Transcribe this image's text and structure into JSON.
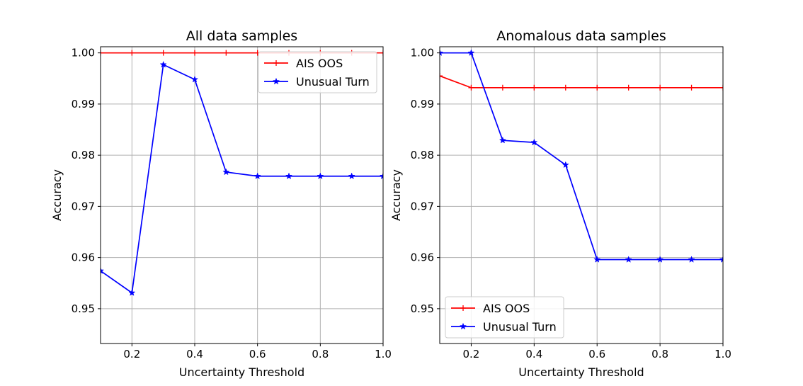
{
  "chart_data": [
    {
      "type": "line",
      "title": "All data samples",
      "xlabel": "Uncertainty Threshold",
      "ylabel": "Accuracy",
      "xlim": [
        0.1,
        1.0
      ],
      "ylim": [
        0.9432,
        1.0012
      ],
      "xticks": [
        0.2,
        0.4,
        0.6,
        0.8,
        1.0
      ],
      "xtick_labels": [
        "0.2",
        "0.4",
        "0.6",
        "0.8",
        "1.0"
      ],
      "yticks": [
        0.95,
        0.96,
        0.97,
        0.98,
        0.99,
        1.0
      ],
      "ytick_labels": [
        "0.95",
        "0.96",
        "0.97",
        "0.98",
        "0.99",
        "1.00"
      ],
      "grid": true,
      "legend_position": "upper right",
      "x": [
        0.1,
        0.2,
        0.3,
        0.4,
        0.5,
        0.6,
        0.7,
        0.8,
        0.9,
        1.0
      ],
      "series": [
        {
          "name": "AIS OOS",
          "color": "#ff0000",
          "marker": "plus",
          "values": [
            1.0,
            1.0,
            1.0,
            1.0,
            1.0,
            1.0,
            1.0,
            1.0,
            1.0,
            1.0
          ]
        },
        {
          "name": "Unusual Turn",
          "color": "#0000ff",
          "marker": "star",
          "values": [
            0.9574,
            0.9531,
            0.9977,
            0.9948,
            0.9767,
            0.9759,
            0.9759,
            0.9759,
            0.9759,
            0.9759
          ]
        }
      ]
    },
    {
      "type": "line",
      "title": "Anomalous data samples",
      "xlabel": "Uncertainty Threshold",
      "ylabel": "Accuracy",
      "xlim": [
        0.1,
        1.0
      ],
      "ylim": [
        0.9432,
        1.0012
      ],
      "xticks": [
        0.2,
        0.4,
        0.6,
        0.8,
        1.0
      ],
      "xtick_labels": [
        "0.2",
        "0.4",
        "0.6",
        "0.8",
        "1.0"
      ],
      "yticks": [
        0.95,
        0.96,
        0.97,
        0.98,
        0.99,
        1.0
      ],
      "ytick_labels": [
        "0.95",
        "0.96",
        "0.97",
        "0.98",
        "0.99",
        "1.00"
      ],
      "grid": true,
      "legend_position": "lower left",
      "x": [
        0.1,
        0.2,
        0.3,
        0.4,
        0.5,
        0.6,
        0.7,
        0.8,
        0.9,
        1.0
      ],
      "series": [
        {
          "name": "AIS OOS",
          "color": "#ff0000",
          "marker": "plus",
          "values": [
            0.9955,
            0.9932,
            0.9932,
            0.9932,
            0.9932,
            0.9932,
            0.9932,
            0.9932,
            0.9932,
            0.9932
          ]
        },
        {
          "name": "Unusual Turn",
          "color": "#0000ff",
          "marker": "star",
          "values": [
            1.0,
            1.0,
            0.9829,
            0.9825,
            0.9781,
            0.9596,
            0.9596,
            0.9596,
            0.9596,
            0.9596
          ]
        }
      ]
    }
  ]
}
